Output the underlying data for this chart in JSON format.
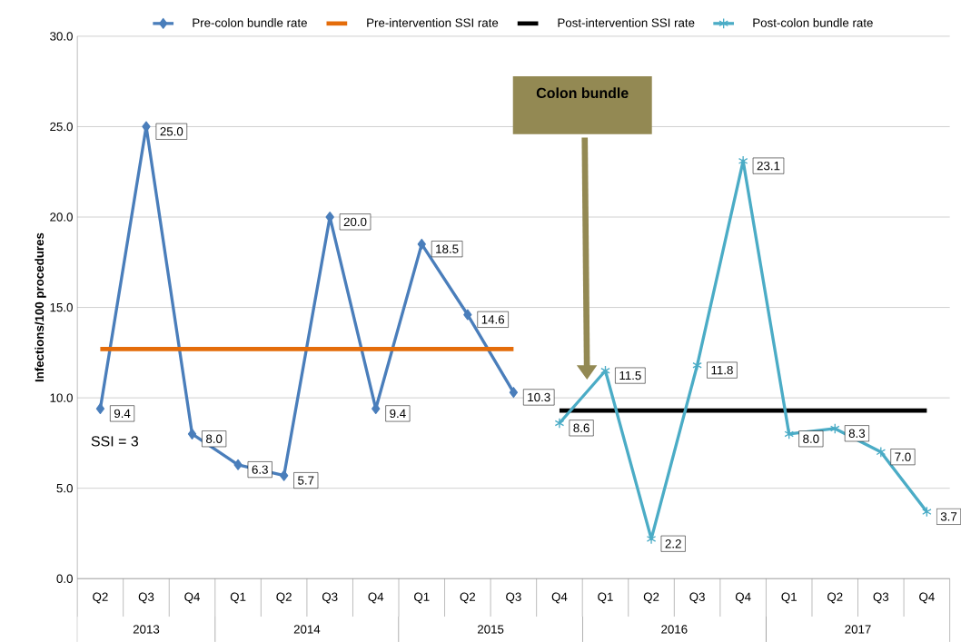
{
  "chart_data": {
    "type": "line",
    "ylabel": "Infections/100 procedures",
    "categories": [
      "Q2",
      "Q3",
      "Q4",
      "Q1",
      "Q2",
      "Q3",
      "Q4",
      "Q1",
      "Q2",
      "Q3",
      "Q4",
      "Q1",
      "Q2",
      "Q3",
      "Q4",
      "Q1",
      "Q2",
      "Q3",
      "Q4"
    ],
    "series": [
      {
        "name": "Pre-colon bundle rate",
        "color": "#4a7ebb",
        "marker": "diamond",
        "values": [
          9.4,
          25.0,
          8.0,
          6.3,
          5.7,
          20.0,
          9.4,
          18.5,
          14.6,
          10.3,
          null,
          null,
          null,
          null,
          null,
          null,
          null,
          null,
          null
        ],
        "value_labels": [
          "9.4",
          "25.0",
          "8.0",
          "6.3",
          "5.7",
          "20.0",
          "9.4",
          "18.5",
          "14.6",
          "10.3",
          null,
          null,
          null,
          null,
          null,
          null,
          null,
          null,
          null
        ]
      },
      {
        "name": "Pre-intervention SSI rate",
        "color": "#e46c0a",
        "marker": "none",
        "values": [
          12.7,
          12.7,
          12.7,
          12.7,
          12.7,
          12.7,
          12.7,
          12.7,
          12.7,
          12.7,
          null,
          null,
          null,
          null,
          null,
          null,
          null,
          null,
          null
        ]
      },
      {
        "name": "Post-intervention SSI rate",
        "color": "#000000",
        "marker": "none",
        "values": [
          null,
          null,
          null,
          null,
          null,
          null,
          null,
          null,
          null,
          null,
          9.3,
          9.3,
          9.3,
          9.3,
          9.3,
          9.3,
          9.3,
          9.3,
          9.3
        ]
      },
      {
        "name": "Post-colon bundle rate",
        "color": "#4bacc6",
        "marker": "cross",
        "values": [
          null,
          null,
          null,
          null,
          null,
          null,
          null,
          null,
          null,
          null,
          8.6,
          11.5,
          2.2,
          11.8,
          23.1,
          8.0,
          8.3,
          7.0,
          3.7
        ],
        "value_labels": [
          null,
          null,
          null,
          null,
          null,
          null,
          null,
          null,
          null,
          null,
          "8.6",
          "11.5",
          "2.2",
          "11.8",
          "23.1",
          "8.0",
          "8.3",
          "7.0",
          "3.7"
        ]
      }
    ],
    "ylim": [
      0,
      30
    ],
    "yticks": [
      {
        "value": 0,
        "label": "0.0"
      },
      {
        "value": 5,
        "label": "5.0"
      },
      {
        "value": 10,
        "label": "10.0"
      },
      {
        "value": 15,
        "label": "15.0"
      },
      {
        "value": 20,
        "label": "20.0"
      },
      {
        "value": 25,
        "label": "25.0"
      },
      {
        "value": 30,
        "label": "30.0"
      }
    ],
    "grid": "y",
    "legend": "top",
    "annotations": [
      "2013",
      "2014",
      "2015",
      "2016",
      "2017",
      "SSI = 3",
      "Colon bundle"
    ]
  }
}
